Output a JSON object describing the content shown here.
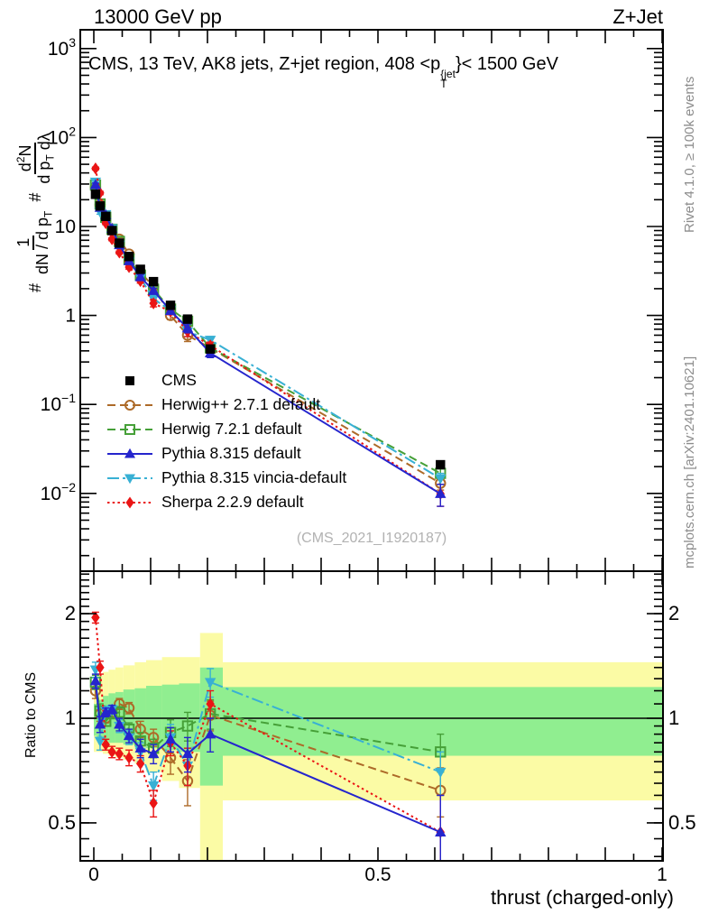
{
  "header": {
    "left": "13000 GeV pp",
    "right": "Z+Jet"
  },
  "title": {
    "pre": "CMS, 13 TeV, AK8 jets, Z+jet region, 408 <p",
    "sup": "{jet",
    "sub": "T",
    "post": "}< 1500 GeV"
  },
  "watermark": "(CMS_2021_I1920187)",
  "side_notes": {
    "top_right": "Rivet 4.1.0, ≥ 100k events",
    "bottom_right": "mcplots.cern.ch [arXiv:2401.10621]"
  },
  "ylabel": {
    "h1": "#",
    "f1n": "1",
    "f1d": "dN / d p",
    "f1dsub": "T",
    "h2": "#",
    "f2n": "d",
    "f2nsup": "2",
    "f2n2": "N",
    "f2d": "d p",
    "f2dsub": "T",
    "f2d2": " dλ"
  },
  "ratio_label": "Ratio to CMS",
  "xaxis": {
    "title": "thrust (charged-only)",
    "labels": [
      {
        "v": 0,
        "t": "0"
      },
      {
        "v": 0.5,
        "t": "0.5"
      },
      {
        "v": 1,
        "t": "1"
      }
    ]
  },
  "yaxis_main": {
    "labels": [
      {
        "v": 1000,
        "m": "10",
        "e": "3"
      },
      {
        "v": 100,
        "m": "10",
        "e": "2"
      },
      {
        "v": 10,
        "m": "10",
        "e": ""
      },
      {
        "v": 1,
        "m": "1",
        "e": ""
      },
      {
        "v": 0.1,
        "m": "10",
        "e": "−1"
      },
      {
        "v": 0.01,
        "m": "10",
        "e": "−2"
      }
    ]
  },
  "yaxis_ratio": {
    "labels": [
      {
        "v": 2,
        "t": "2"
      },
      {
        "v": 1,
        "t": "1"
      },
      {
        "v": 0.5,
        "t": "0.5"
      }
    ]
  },
  "colors": {
    "cms": "#000000",
    "herwigpp": "#ad6a28",
    "herwig7": "#46a038",
    "pythia": "#2525cd",
    "vincia": "#38b0d4",
    "sherpa": "#ea1515",
    "band_yellow": "#fbfba5",
    "band_green": "#90ee90",
    "gray_text": "#8c8c8c",
    "watermark": "#b2b2b2"
  },
  "legend": [
    {
      "series": "cms",
      "label": "CMS"
    },
    {
      "series": "herwigpp",
      "label": "Herwig++ 2.7.1 default"
    },
    {
      "series": "herwig7",
      "label": "Herwig 7.2.1 default"
    },
    {
      "series": "pythia",
      "label": "Pythia 8.315 default"
    },
    {
      "series": "vincia",
      "label": "Pythia 8.315 vincia-default"
    },
    {
      "series": "sherpa",
      "label": "Sherpa 2.2.9 default"
    }
  ],
  "chart_data": [
    {
      "type": "line",
      "title": "CMS, 13 TeV, AK8 jets, Z+jet region, 408 < pT{jet} < 1500 GeV",
      "xlabel": "thrust (charged-only)",
      "ylabel": "# 1/(dN/dpT) # d2N/(dpT dlambda)",
      "xlim": [
        0,
        1
      ],
      "ylog": true,
      "ylim": [
        0.00135,
        1640
      ],
      "grid": false,
      "x": [
        0.003,
        0.011,
        0.021,
        0.032,
        0.045,
        0.062,
        0.082,
        0.105,
        0.135,
        0.165,
        0.205,
        0.61
      ],
      "series": [
        {
          "id": "herwigpp",
          "name": "Herwig++ 2.7.1 default",
          "marker": "circle",
          "fill": false,
          "line": "dash",
          "values": [
            27.6,
            17.5,
            13.0,
            9.4,
            7.2,
            4.9,
            3.07,
            2.11,
            1.0,
            0.6,
            0.43,
            0.013
          ]
        },
        {
          "id": "herwig7",
          "name": "Herwig 7.2.1 default",
          "marker": "square",
          "fill": false,
          "line": "dash",
          "values": [
            29.2,
            17.9,
            12.7,
            9.3,
            6.8,
            4.3,
            2.84,
            1.97,
            1.18,
            0.86,
            0.433,
            0.0168
          ]
        },
        {
          "id": "vincia",
          "name": "Pythia 8.315 vincia-default",
          "marker": "triangle-down",
          "fill": true,
          "line": "dashdot",
          "values": [
            31.7,
            14.6,
            13.7,
            9.5,
            6.2,
            4.0,
            2.64,
            1.54,
            1.14,
            0.66,
            0.53,
            0.0147
          ]
        },
        {
          "id": "sherpa",
          "name": "Sherpa 2.2.9 default",
          "marker": "diamond",
          "fill": true,
          "line": "dot",
          "values": [
            44.9,
            23.8,
            10.9,
            7.2,
            5.1,
            3.5,
            2.44,
            1.37,
            1.11,
            0.66,
            0.46,
            0.0099
          ]
        },
        {
          "id": "pythia",
          "name": "Pythia 8.315 default",
          "marker": "triangle-up",
          "fill": true,
          "line": "solid",
          "values": [
            29.4,
            16.3,
            13.5,
            9.5,
            6.2,
            4.1,
            2.71,
            1.9,
            1.13,
            0.72,
            0.378,
            0.0099
          ]
        },
        {
          "id": "cms",
          "name": "CMS",
          "marker": "square",
          "fill": true,
          "line": "none",
          "values": [
            23,
            17,
            13,
            9.0,
            6.5,
            4.6,
            3.3,
            2.4,
            1.3,
            0.91,
            0.42,
            0.021
          ]
        }
      ]
    },
    {
      "type": "line",
      "title": "Ratio to CMS",
      "xlim": [
        0,
        1
      ],
      "ylog": true,
      "ylim": [
        0.39,
        2.65
      ],
      "ref_line": 1,
      "bands": {
        "yellow": [
          [
            0,
            0.005,
            0.8,
            1.3
          ],
          [
            0.005,
            0.016,
            0.8,
            1.33
          ],
          [
            0.016,
            0.026,
            0.79,
            1.36
          ],
          [
            0.026,
            0.038,
            0.78,
            1.38
          ],
          [
            0.038,
            0.052,
            0.77,
            1.4
          ],
          [
            0.052,
            0.072,
            0.76,
            1.42
          ],
          [
            0.072,
            0.092,
            0.74,
            1.45
          ],
          [
            0.092,
            0.12,
            0.7,
            1.47
          ],
          [
            0.12,
            0.15,
            0.66,
            1.5
          ],
          [
            0.15,
            0.187,
            0.63,
            1.5
          ],
          [
            0.187,
            0.227,
            0.33,
            1.76
          ],
          [
            0.227,
            1,
            0.58,
            1.45
          ]
        ],
        "green": [
          [
            0,
            0.005,
            0.89,
            1.1
          ],
          [
            0.005,
            0.016,
            0.87,
            1.13
          ],
          [
            0.016,
            0.026,
            0.86,
            1.16
          ],
          [
            0.026,
            0.038,
            0.85,
            1.18
          ],
          [
            0.038,
            0.052,
            0.85,
            1.19
          ],
          [
            0.052,
            0.072,
            0.84,
            1.21
          ],
          [
            0.072,
            0.092,
            0.83,
            1.22
          ],
          [
            0.092,
            0.12,
            0.82,
            1.24
          ],
          [
            0.12,
            0.15,
            0.81,
            1.25
          ],
          [
            0.15,
            0.187,
            0.8,
            1.26
          ],
          [
            0.187,
            0.227,
            0.64,
            1.4
          ],
          [
            0.227,
            1,
            0.78,
            1.23
          ]
        ]
      },
      "x": [
        0.003,
        0.011,
        0.021,
        0.032,
        0.045,
        0.062,
        0.082,
        0.105,
        0.135,
        0.165,
        0.205,
        0.61
      ],
      "series": [
        {
          "id": "herwigpp",
          "line": "dash",
          "marker": "circle",
          "fill": false,
          "values": [
            1.2,
            1.03,
            1.0,
            1.04,
            1.1,
            1.07,
            0.93,
            0.88,
            0.77,
            0.66,
            1.02,
            0.62
          ],
          "err": [
            0.06,
            0.05,
            0.03,
            0.03,
            0.04,
            0.04,
            0.05,
            0.05,
            0.08,
            0.1,
            0.1,
            0.1
          ]
        },
        {
          "id": "herwig7",
          "line": "dash",
          "marker": "square",
          "fill": false,
          "values": [
            1.27,
            1.05,
            0.98,
            1.03,
            1.04,
            0.93,
            0.86,
            0.82,
            0.91,
            0.95,
            1.03,
            0.8
          ],
          "err": [
            0.06,
            0.05,
            0.03,
            0.03,
            0.04,
            0.04,
            0.05,
            0.05,
            0.08,
            0.09,
            0.1,
            0.1
          ]
        },
        {
          "id": "vincia",
          "line": "dashdot",
          "marker": "triangle-down",
          "fill": true,
          "values": [
            1.38,
            0.86,
            1.05,
            1.06,
            0.95,
            0.88,
            0.8,
            0.64,
            0.88,
            0.73,
            1.27,
            0.7
          ],
          "err": [
            0.07,
            0.05,
            0.03,
            0.03,
            0.04,
            0.04,
            0.05,
            0.06,
            0.08,
            0.09,
            0.12,
            0.1
          ]
        },
        {
          "id": "sherpa",
          "line": "dot",
          "marker": "diamond",
          "fill": true,
          "values": [
            1.95,
            1.4,
            0.84,
            0.8,
            0.79,
            0.77,
            0.74,
            0.57,
            0.85,
            0.73,
            1.1,
            0.47
          ],
          "err": [
            0.07,
            0.06,
            0.03,
            0.03,
            0.03,
            0.04,
            0.04,
            0.05,
            0.07,
            0.09,
            0.1,
            0.13
          ]
        },
        {
          "id": "pythia",
          "line": "solid",
          "marker": "triangle-up",
          "fill": true,
          "values": [
            1.28,
            0.96,
            1.04,
            1.06,
            0.96,
            0.89,
            0.82,
            0.79,
            0.87,
            0.79,
            0.9,
            0.47
          ],
          "err": [
            0.06,
            0.05,
            0.03,
            0.03,
            0.04,
            0.04,
            0.05,
            0.05,
            0.07,
            0.09,
            0.1,
            0.13
          ]
        }
      ]
    }
  ]
}
